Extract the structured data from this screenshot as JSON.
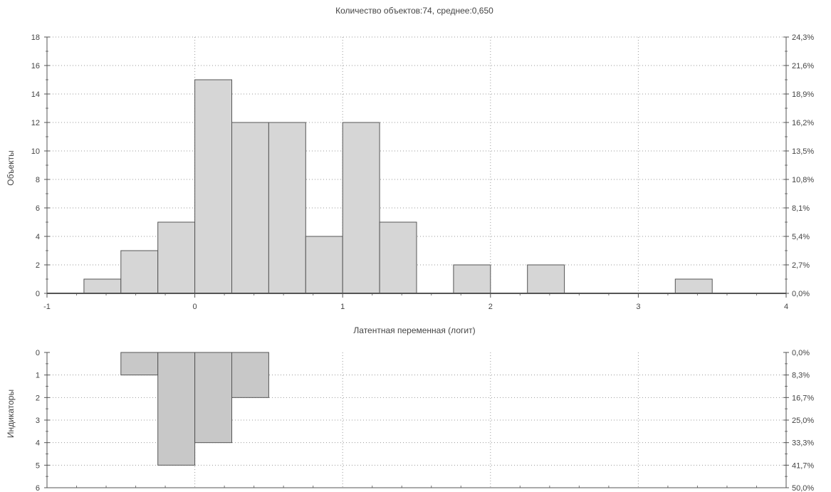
{
  "title": "Количество объектов:74, среднее:0,650",
  "chart_data": [
    {
      "type": "bar",
      "title": "Количество объектов:74, среднее:0,650",
      "xlabel": "Латентная переменная (логит)",
      "ylabel": "Объекты",
      "xlim": [
        -1,
        4
      ],
      "ylim": [
        0,
        18
      ],
      "x_ticks": [
        "-1",
        "0",
        "1",
        "2",
        "3",
        "4"
      ],
      "y_ticks": [
        "0",
        "2",
        "4",
        "6",
        "8",
        "10",
        "12",
        "14",
        "16",
        "18"
      ],
      "y2_ticks": [
        "0,0%",
        "2,7%",
        "5,4%",
        "8,1%",
        "10,8%",
        "13,5%",
        "16,2%",
        "18,9%",
        "21,6%",
        "24,3%"
      ],
      "bin_width": 0.25,
      "bins": [
        {
          "start": -0.75,
          "value": 1
        },
        {
          "start": -0.5,
          "value": 3
        },
        {
          "start": -0.25,
          "value": 5
        },
        {
          "start": 0.0,
          "value": 15
        },
        {
          "start": 0.25,
          "value": 12
        },
        {
          "start": 0.5,
          "value": 12
        },
        {
          "start": 0.75,
          "value": 4
        },
        {
          "start": 1.0,
          "value": 12
        },
        {
          "start": 1.25,
          "value": 5
        },
        {
          "start": 1.75,
          "value": 2
        },
        {
          "start": 2.25,
          "value": 2
        },
        {
          "start": 3.25,
          "value": 1
        }
      ],
      "grid": true,
      "bar_color": "#d6d6d6"
    },
    {
      "type": "bar",
      "orientation": "downward",
      "ylabel": "Индикаторы",
      "xlim": [
        -1,
        4
      ],
      "ylim": [
        0,
        6
      ],
      "y_ticks": [
        "0",
        "1",
        "2",
        "3",
        "4",
        "5",
        "6"
      ],
      "y2_ticks": [
        "0,0%",
        "8,3%",
        "16,7%",
        "25,0%",
        "33,3%",
        "41,7%",
        "50,0%"
      ],
      "bin_width": 0.25,
      "bins": [
        {
          "start": -0.5,
          "value": 1
        },
        {
          "start": -0.25,
          "value": 5
        },
        {
          "start": 0.0,
          "value": 4
        },
        {
          "start": 0.25,
          "value": 2
        }
      ],
      "grid": true,
      "bar_color": "#c8c8c8"
    }
  ]
}
